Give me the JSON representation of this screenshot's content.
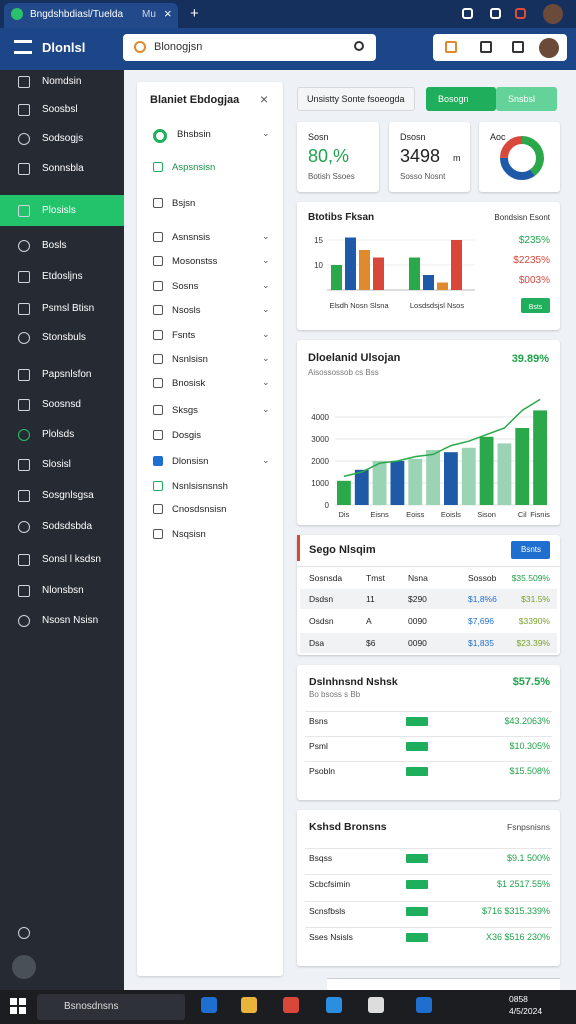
{
  "browser": {
    "tab_title": "Bngdshbdiasl/Tuelda",
    "tab_extra": "Mu"
  },
  "app": {
    "title": "Dlonlsl",
    "search": "Blonogjsn"
  },
  "sidebar": {
    "items": [
      "Nomdsin",
      "Soosbsl",
      "Sodsogjs",
      "Sonnsbla",
      "Plosisls",
      "Bosls",
      "Etdosljns",
      "Psmsl Btisn",
      "Stonsbuls",
      "Papsnlsfon",
      "Soosnsd",
      "Plolsds",
      "Slosisl",
      "Sosgnlsgsa",
      "Sodsdsbda",
      "Sonsl l ksdsn",
      "Nlonsbsn",
      "Nsosn Nsisn"
    ],
    "active": 4
  },
  "panel": {
    "title": "Blaniet Ebdogjaa",
    "items": [
      "Bhsbsin",
      "Aspsnsisn",
      "Bsjsn",
      "Asnsnsis",
      "Mosonstss",
      "Sosns",
      "Nsosls",
      "Fsnts",
      "Nsnlsisn",
      "Bnosisk",
      "Sksgs",
      "Dosgis",
      "Dlonsisn",
      "Nsnlsisnsnsh",
      "Cnosdsnsisn",
      "Nsqsisn"
    ]
  },
  "toolbar": {
    "filter": "Unsistty Sonte fsoeogda",
    "primary": "Bosogn",
    "secondary": "Snsbsl"
  },
  "stats": [
    {
      "label": "Sosn",
      "value": "80,%",
      "sub": "Botish Ssoes"
    },
    {
      "label": "Dsosn",
      "value": "3498",
      "unit": "m",
      "sub": "Sosso Nosnt"
    }
  ],
  "donut": {
    "label": "Aoc",
    "values": [
      40,
      35,
      25
    ],
    "colors": [
      "#2ba84a",
      "#1e5aa8",
      "#d8473a"
    ]
  },
  "bar_chart": {
    "type": "bar",
    "title": "Btotibs Fksan",
    "categories": [
      "Elsdh Nosn Slsna",
      "Losdsdsjsl Nsos"
    ],
    "series": [
      {
        "color": "#2ba84a",
        "values": [
          10,
          11.5
        ]
      },
      {
        "color": "#1e5aa8",
        "values": [
          15.5,
          8
        ]
      },
      {
        "color": "#e08a2e",
        "values": [
          13,
          6.5
        ]
      },
      {
        "color": "#d8473a",
        "values": [
          11.5,
          15
        ]
      }
    ],
    "ylim": [
      5,
      18
    ],
    "yticks": [
      10,
      15
    ],
    "side_title": "Bondsisn Esont",
    "side_values": [
      {
        "text": "$235%",
        "color": "#1fa34a"
      },
      {
        "text": "$2235%",
        "color": "#d8473a"
      },
      {
        "text": "$003%",
        "color": "#d8473a"
      }
    ],
    "button": "Bsts"
  },
  "combo_chart": {
    "type": "bar",
    "title": "Dloelanid Ulsojan",
    "value": "39.89%",
    "subtitle": "Aisossossob cs Bss",
    "categories": [
      "Dis",
      null,
      "Eisns",
      null,
      "Eoiss",
      null,
      "Eoisls",
      null,
      "Sison",
      null,
      "Cil",
      "Fisnis"
    ],
    "values": [
      1100,
      1600,
      2000,
      2000,
      2100,
      2500,
      2400,
      2600,
      3100,
      2800,
      3500,
      4300
    ],
    "colors": [
      "#2ba84a",
      "#1e5aa8",
      "#9bd3b5",
      "#1e5aa8",
      "#9bd3b5",
      "#9bd3b5",
      "#1e5aa8",
      "#9bd3b5",
      "#2ba84a",
      "#9bd3b5",
      "#2ba84a",
      "#2ba84a"
    ],
    "line": [
      1300,
      1500,
      1900,
      2000,
      2200,
      2300,
      2700,
      2900,
      3200,
      3500,
      4300,
      4800
    ],
    "line_color": "#2ba84a",
    "ylim": [
      0,
      5000
    ],
    "yticks": [
      0,
      1000,
      2000,
      3000,
      4000
    ]
  },
  "table": {
    "title": "Sego Nlsqim",
    "button": "Bsnts",
    "header": [
      "Sosnsda",
      "Tmst",
      "Nsna",
      "Sossob",
      "$35.509%"
    ],
    "rows": [
      [
        "Dsdsn",
        "11",
        "$290",
        "$1,8%6",
        "$31.5%"
      ],
      [
        "Osdsn",
        "A",
        "0090",
        "$7,696",
        "$3390%"
      ],
      [
        "Dsa",
        "$6",
        "0090",
        "$1,835",
        "$23.39%"
      ]
    ]
  },
  "card2": {
    "title": "Dslnhnsnd Nshsk",
    "value": "$57.5%",
    "subtitle": "Bo bsoss s Bb",
    "rows": [
      [
        "Bsns",
        "$43.2063%"
      ],
      [
        "Psml",
        "$10.305%"
      ],
      [
        "Psobln",
        "$15.508%"
      ]
    ]
  },
  "card3": {
    "title": "Kshsd Bronsns",
    "side": "Fsnpsnisns",
    "rows": [
      [
        "Bsqss",
        "$9.1 500%"
      ],
      [
        "Scbcfsimin",
        "$1 2517.55%"
      ],
      [
        "Scnsfbsls",
        "$716 $315.339%"
      ],
      [
        "Sses Nsisls",
        "X36 $516 230%"
      ]
    ]
  },
  "taskbar": {
    "search": "Bsnosdnsns",
    "time": "0858",
    "date": "4/5/2024"
  }
}
